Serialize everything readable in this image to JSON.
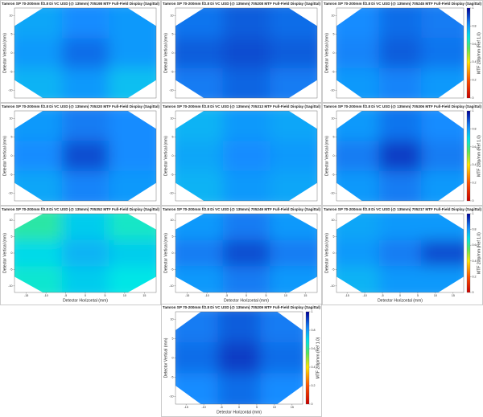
{
  "axes": {
    "xlabel": "Detector Horizontal (mm)",
    "ylabel": "Detector Vertical (mm)",
    "colorbar_label": "MTF 20lp/mm (Ref 1.0)",
    "xlim": [
      -18,
      18
    ],
    "xticks": [
      -15,
      -10,
      -5,
      0,
      5,
      10,
      15
    ],
    "ylim": [
      -12,
      12
    ],
    "yticks": [
      -10,
      -5,
      0,
      5,
      10
    ],
    "clim": [
      0,
      1
    ],
    "colorbar_ticks": [
      0,
      0.2,
      0.4,
      0.6,
      0.8,
      1
    ]
  },
  "chart_data": [
    {
      "type": "heatmap",
      "title": "Tamron SP 70-200mm f/2.8 Di VC USD (@ 135mm) 705198 MTF Full-Field Display (Sagittal)",
      "colorbar": false,
      "xaxis": false,
      "values": [
        [
          0.78,
          0.82,
          0.8
        ],
        [
          0.8,
          0.86,
          0.8
        ],
        [
          0.76,
          0.8,
          0.74
        ]
      ]
    },
    {
      "type": "heatmap",
      "title": "Tamron SP 70-200mm f/2.8 Di VC USD (@ 135mm) 705208 MTF Full-Field Display (Sagittal)",
      "colorbar": false,
      "xaxis": false,
      "values": [
        [
          0.85,
          0.88,
          0.86
        ],
        [
          0.88,
          0.9,
          0.88
        ],
        [
          0.84,
          0.87,
          0.84
        ]
      ]
    },
    {
      "type": "heatmap",
      "title": "Tamron SP 70-200mm f/2.8 Di VC USD (@ 135mm) 705245 MTF Full-Field Display (Sagittal)",
      "colorbar": true,
      "xaxis": false,
      "values": [
        [
          0.82,
          0.86,
          0.84
        ],
        [
          0.83,
          0.88,
          0.85
        ],
        [
          0.8,
          0.83,
          0.8
        ]
      ]
    },
    {
      "type": "heatmap",
      "title": "Tamron SP 70-200mm f/2.8 Di VC USD (@ 135mm) 705320 MTF Full-Field Display (Sagittal)",
      "colorbar": false,
      "xaxis": false,
      "values": [
        [
          0.8,
          0.84,
          0.82
        ],
        [
          0.82,
          0.9,
          0.82
        ],
        [
          0.78,
          0.83,
          0.8
        ]
      ]
    },
    {
      "type": "heatmap",
      "title": "Tamron SP 70-200mm f/2.8 Di VC USD (@ 135mm) 705313 MTF Full-Field Display (Sagittal)",
      "colorbar": false,
      "xaxis": false,
      "values": [
        [
          0.76,
          0.8,
          0.78
        ],
        [
          0.78,
          0.82,
          0.8
        ],
        [
          0.76,
          0.8,
          0.78
        ]
      ]
    },
    {
      "type": "heatmap",
      "title": "Tamron SP 70-200mm f/2.8 Di VC USD (@ 135mm) 705306 MTF Full-Field Display (Sagittal)",
      "colorbar": true,
      "xaxis": false,
      "values": [
        [
          0.8,
          0.85,
          0.82
        ],
        [
          0.84,
          0.92,
          0.84
        ],
        [
          0.8,
          0.84,
          0.8
        ]
      ]
    },
    {
      "type": "heatmap",
      "title": "Tamron SP 70-200mm f/2.8 Di VC USD (@ 135mm) 705352 MTF Full-Field Display (Sagittal)",
      "colorbar": false,
      "xaxis": true,
      "values": [
        [
          0.62,
          0.72,
          0.65
        ],
        [
          0.7,
          0.76,
          0.72
        ],
        [
          0.66,
          0.72,
          0.68
        ]
      ]
    },
    {
      "type": "heatmap",
      "title": "Tamron SP 70-200mm f/2.8 Di VC USD (@ 135mm) 705249 MTF Full-Field Display (Sagittal)",
      "colorbar": false,
      "xaxis": true,
      "values": [
        [
          0.8,
          0.84,
          0.8
        ],
        [
          0.84,
          0.9,
          0.84
        ],
        [
          0.8,
          0.84,
          0.8
        ]
      ]
    },
    {
      "type": "heatmap",
      "title": "Tamron SP 70-200mm f/2.8 Di VC USD (@ 135mm) 705217 MTF Full-Field Display (Sagittal)",
      "colorbar": true,
      "xaxis": true,
      "values": [
        [
          0.78,
          0.8,
          0.8
        ],
        [
          0.8,
          0.84,
          0.9
        ],
        [
          0.76,
          0.8,
          0.8
        ]
      ]
    },
    {
      "type": "heatmap",
      "title": "Tamron SP 70-200mm f/2.8 Di VC USD (@ 135mm) 705209 MTF Full-Field Display (Sagittal)",
      "colorbar": true,
      "xaxis": true,
      "values": [
        [
          0.84,
          0.88,
          0.84
        ],
        [
          0.86,
          0.92,
          0.86
        ],
        [
          0.82,
          0.86,
          0.82
        ]
      ]
    }
  ]
}
